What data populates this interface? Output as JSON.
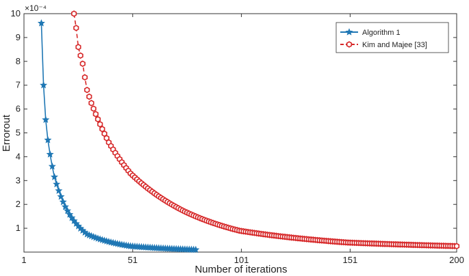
{
  "chart_data": {
    "type": "line",
    "xlabel": "Number of iterations",
    "ylabel": "Errorout",
    "y_exponent_label": "×10⁻⁴",
    "xlim": [
      1,
      200
    ],
    "ylim": [
      0,
      10
    ],
    "xticks": [
      1,
      51,
      101,
      151,
      200
    ],
    "yticks": [
      1,
      2,
      3,
      4,
      5,
      6,
      7,
      8,
      9,
      10
    ],
    "grid": false,
    "legend_position": "top-right",
    "series": [
      {
        "name": "Algorithm 1",
        "color": "#1f77b4",
        "line_style": "solid",
        "marker": "star",
        "x_start": 9,
        "x_end": 80,
        "y_at_x9": 9.6,
        "y_at_x10": 7.0,
        "y_at_x11": 5.55,
        "y_at_x12": 4.7,
        "y_at_x13": 4.1,
        "y_at_x15": 3.15,
        "y_at_x20": 1.9,
        "y_at_x30": 0.75,
        "y_at_x50": 0.25,
        "y_at_x80": 0.1
      },
      {
        "name": "Kim and Majee  [33]",
        "color": "#d62728",
        "line_style": "dashed",
        "marker": "hexagon",
        "x_start": 24,
        "x_end": 200,
        "y_at_x24": 10.0,
        "y_at_x25": 9.4,
        "y_at_x26": 8.6,
        "y_at_x28": 7.9,
        "y_at_x30": 6.8,
        "y_at_x32": 6.25,
        "y_at_x40": 4.6,
        "y_at_x50": 3.3,
        "y_at_x75": 1.7,
        "y_at_x100": 0.9,
        "y_at_x150": 0.4,
        "y_at_x200": 0.25
      }
    ]
  }
}
